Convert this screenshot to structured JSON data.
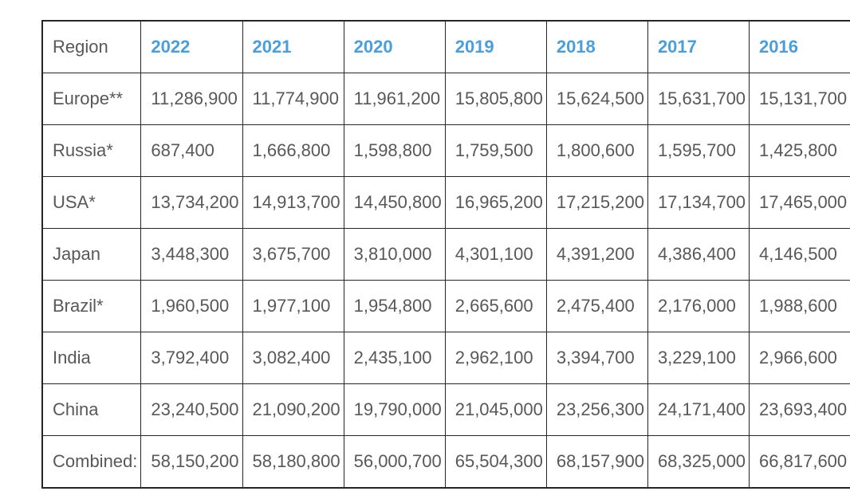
{
  "chart_data": {
    "type": "table",
    "columns": [
      "Region",
      "2022",
      "2021",
      "2020",
      "2019",
      "2018",
      "2017",
      "2016"
    ],
    "rows": [
      {
        "region": "Europe**",
        "values": [
          "11,286,900",
          "11,774,900",
          "11,961,200",
          "15,805,800",
          "15,624,500",
          "15,631,700",
          "15,131,700"
        ]
      },
      {
        "region": "Russia*",
        "values": [
          "687,400",
          "1,666,800",
          "1,598,800",
          "1,759,500",
          "1,800,600",
          "1,595,700",
          "1,425,800"
        ]
      },
      {
        "region": "USA*",
        "values": [
          "13,734,200",
          "14,913,700",
          "14,450,800",
          "16,965,200",
          "17,215,200",
          "17,134,700",
          "17,465,000"
        ]
      },
      {
        "region": "Japan",
        "values": [
          "3,448,300",
          "3,675,700",
          "3,810,000",
          "4,301,100",
          "4,391,200",
          "4,386,400",
          "4,146,500"
        ]
      },
      {
        "region": "Brazil*",
        "values": [
          "1,960,500",
          "1,977,100",
          "1,954,800",
          "2,665,600",
          "2,475,400",
          "2,176,000",
          "1,988,600"
        ]
      },
      {
        "region": "India",
        "values": [
          "3,792,400",
          "3,082,400",
          "2,435,100",
          "2,962,100",
          "3,394,700",
          "3,229,100",
          "2,966,600"
        ]
      },
      {
        "region": "China",
        "values": [
          "23,240,500",
          "21,090,200",
          "19,790,000",
          "21,045,000",
          "23,256,300",
          "24,171,400",
          "23,693,400"
        ]
      },
      {
        "region": "Combined:",
        "values": [
          "58,150,200",
          "58,180,800",
          "56,000,700",
          "65,504,300",
          "68,157,900",
          "68,325,000",
          "66,817,600"
        ]
      }
    ],
    "layout_hints": {
      "header_text_color": "#4a9ed9",
      "body_text_color": "#58585b",
      "border_color": "#262626",
      "background_color": "#ffffff",
      "rightmost_column_cut_off": true
    }
  }
}
